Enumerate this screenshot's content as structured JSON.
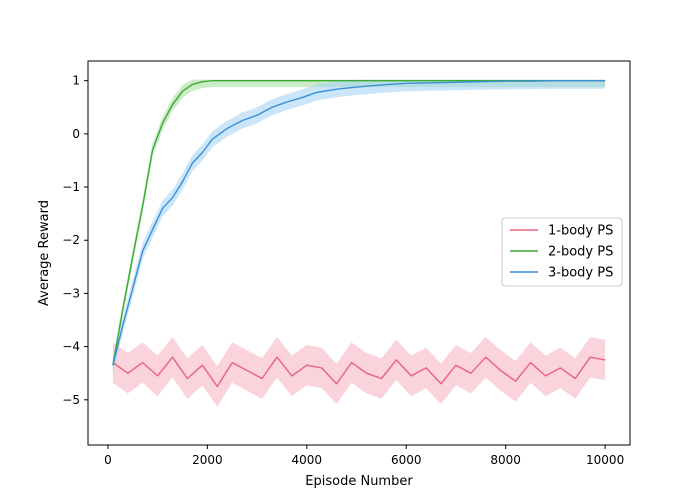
{
  "chart_data": {
    "type": "line",
    "xlabel": "Episode Number",
    "ylabel": "Average Reward",
    "xlim": [
      -400,
      10500
    ],
    "ylim": [
      -5.85,
      1.37
    ],
    "xticks": [
      0,
      2000,
      4000,
      6000,
      8000,
      10000
    ],
    "yticks": [
      1,
      0,
      -1,
      -2,
      -3,
      -4,
      -5
    ],
    "grid": false,
    "legend_position": "center-right",
    "series": [
      {
        "name": "1-body PS",
        "color": "#e8637f",
        "band_color": "#f7b6c4",
        "x": [
          100,
          400,
          700,
          1000,
          1300,
          1600,
          1900,
          2200,
          2500,
          2800,
          3100,
          3400,
          3700,
          4000,
          4300,
          4600,
          4900,
          5200,
          5500,
          5800,
          6100,
          6400,
          6700,
          7000,
          7300,
          7600,
          7900,
          8200,
          8500,
          8800,
          9100,
          9400,
          9700,
          10000
        ],
        "y": [
          -4.3,
          -4.5,
          -4.3,
          -4.55,
          -4.2,
          -4.6,
          -4.35,
          -4.75,
          -4.3,
          -4.45,
          -4.6,
          -4.2,
          -4.55,
          -4.35,
          -4.4,
          -4.7,
          -4.3,
          -4.5,
          -4.6,
          -4.25,
          -4.55,
          -4.4,
          -4.7,
          -4.35,
          -4.5,
          -4.2,
          -4.45,
          -4.65,
          -4.3,
          -4.55,
          -4.4,
          -4.6,
          -4.2,
          -4.25
        ],
        "band": 0.38
      },
      {
        "name": "2-body PS",
        "color": "#3aaa35",
        "band_color": "#a8e0a0",
        "x": [
          100,
          300,
          500,
          700,
          900,
          1100,
          1300,
          1500,
          1700,
          1900,
          2100,
          2400,
          2800,
          3500,
          4500,
          5500,
          6500,
          7500,
          8500,
          9500,
          10000
        ],
        "y": [
          -4.35,
          -3.3,
          -2.3,
          -1.35,
          -0.3,
          0.2,
          0.55,
          0.8,
          0.93,
          0.98,
          1.0,
          1.0,
          1.0,
          1.0,
          1.0,
          1.0,
          1.0,
          1.0,
          1.0,
          1.0,
          1.0
        ],
        "band": 0.12
      },
      {
        "name": "3-body PS",
        "color": "#3a8fd9",
        "band_color": "#a9d3f5",
        "x": [
          100,
          300,
          500,
          700,
          900,
          1100,
          1300,
          1500,
          1700,
          1900,
          2100,
          2400,
          2700,
          3000,
          3300,
          3600,
          3900,
          4200,
          4600,
          5000,
          5500,
          6000,
          6500,
          7000,
          7500,
          8000,
          8500,
          9000,
          9500,
          10000
        ],
        "y": [
          -4.35,
          -3.6,
          -2.9,
          -2.2,
          -1.8,
          -1.4,
          -1.2,
          -0.9,
          -0.55,
          -0.35,
          -0.1,
          0.1,
          0.25,
          0.35,
          0.5,
          0.6,
          0.68,
          0.78,
          0.84,
          0.88,
          0.92,
          0.95,
          0.96,
          0.97,
          0.98,
          0.99,
          0.99,
          1.0,
          1.0,
          1.0
        ],
        "band": 0.15
      }
    ]
  }
}
